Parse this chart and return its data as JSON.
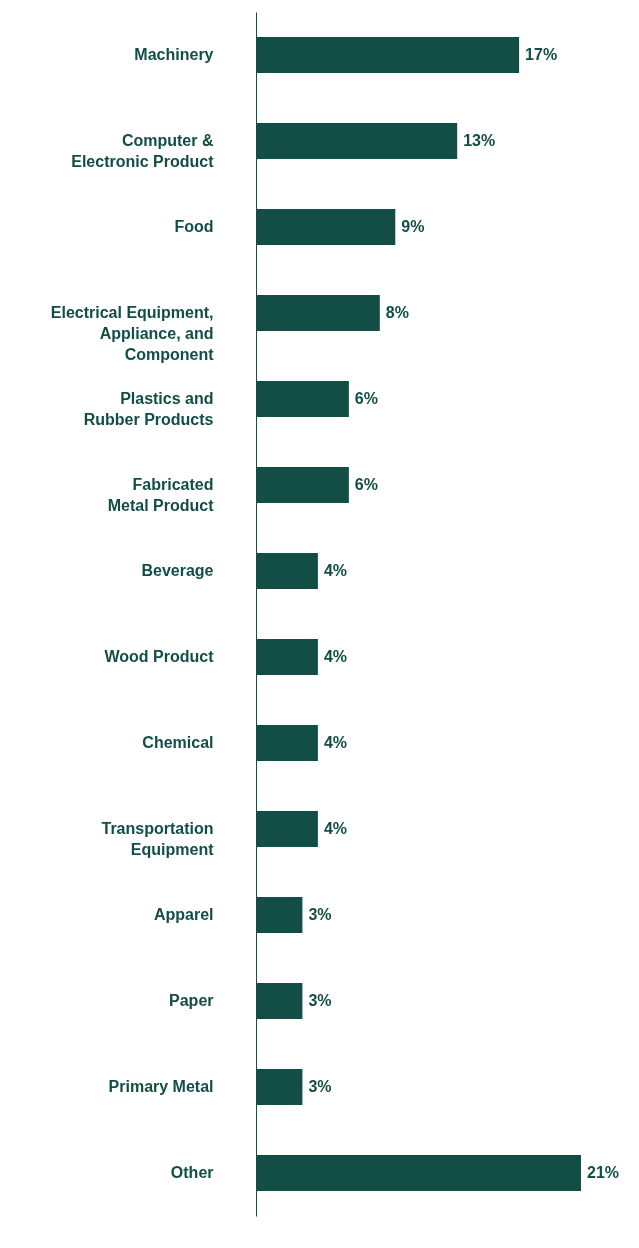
{
  "chart_data": {
    "type": "bar",
    "orientation": "horizontal",
    "categories": [
      "Machinery",
      "Computer &\nElectronic Product",
      "Food",
      "Electrical Equipment,\nAppliance, and\nComponent",
      "Plastics and\nRubber Products",
      "Fabricated\nMetal Product",
      "Beverage",
      "Wood Product",
      "Chemical",
      "Transportation\nEquipment",
      "Apparel",
      "Paper",
      "Primary Metal",
      "Other"
    ],
    "values": [
      17,
      13,
      9,
      8,
      6,
      6,
      4,
      4,
      4,
      4,
      3,
      3,
      3,
      21
    ],
    "value_labels": [
      "17%",
      "13%",
      "9%",
      "8%",
      "6%",
      "6%",
      "4%",
      "4%",
      "4%",
      "4%",
      "3%",
      "3%",
      "3%",
      "21%"
    ],
    "color": "#124e46"
  }
}
